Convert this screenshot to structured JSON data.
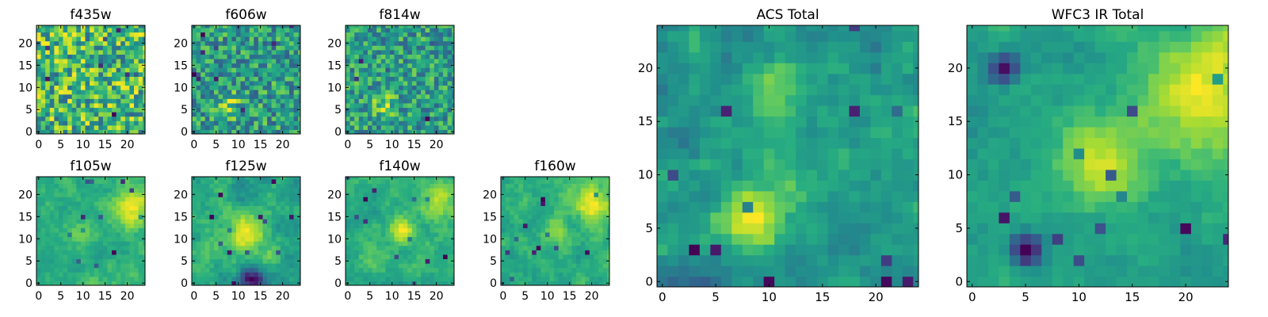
{
  "chart_data": [
    {
      "type": "heatmap",
      "title": "f435w",
      "size": 25,
      "seed": 11,
      "smooth": 0,
      "noise": 1.0,
      "xticks": [
        0,
        5,
        10,
        15,
        20
      ],
      "yticks": [
        0,
        5,
        10,
        15,
        20
      ],
      "colormap": "viridis",
      "grid": false,
      "blobs": []
    },
    {
      "type": "heatmap",
      "title": "f606w",
      "size": 25,
      "seed": 23,
      "smooth": 0,
      "noise": 1.0,
      "xticks": [
        0,
        5,
        10,
        15,
        20
      ],
      "yticks": [
        0,
        5,
        10,
        15,
        20
      ],
      "colormap": "viridis",
      "grid": false,
      "blobs": [
        {
          "x": 8,
          "y": 6,
          "r": 2,
          "amp": 0.9
        }
      ]
    },
    {
      "type": "heatmap",
      "title": "f814w",
      "size": 25,
      "seed": 37,
      "smooth": 0,
      "noise": 1.0,
      "xticks": [
        0,
        5,
        10,
        15,
        20
      ],
      "yticks": [
        0,
        5,
        10,
        15,
        20
      ],
      "colormap": "viridis",
      "grid": false,
      "blobs": [
        {
          "x": 8,
          "y": 6,
          "r": 2,
          "amp": 0.9
        }
      ]
    },
    {
      "type": "heatmap",
      "title": "f105w",
      "size": 25,
      "seed": 41,
      "smooth": 2,
      "noise": 0.8,
      "xticks": [
        0,
        5,
        10,
        15,
        20
      ],
      "yticks": [
        0,
        5,
        10,
        15,
        20
      ],
      "colormap": "viridis",
      "grid": false,
      "blobs": [
        {
          "x": 21,
          "y": 17,
          "r": 3,
          "amp": 1.0
        },
        {
          "x": 10,
          "y": 12,
          "r": 2,
          "amp": 0.5
        }
      ]
    },
    {
      "type": "heatmap",
      "title": "f125w",
      "size": 25,
      "seed": 53,
      "smooth": 2,
      "noise": 0.8,
      "xticks": [
        0,
        5,
        10,
        15,
        20
      ],
      "yticks": [
        0,
        5,
        10,
        15,
        20
      ],
      "colormap": "viridis",
      "grid": false,
      "blobs": [
        {
          "x": 12,
          "y": 11,
          "r": 3,
          "amp": 0.9
        },
        {
          "x": 13,
          "y": 1,
          "r": 2,
          "amp": -1.2
        }
      ]
    },
    {
      "type": "heatmap",
      "title": "f140w",
      "size": 25,
      "seed": 67,
      "smooth": 2,
      "noise": 0.8,
      "xticks": [
        0,
        5,
        10,
        15,
        20
      ],
      "yticks": [
        0,
        5,
        10,
        15,
        20
      ],
      "colormap": "viridis",
      "grid": false,
      "blobs": [
        {
          "x": 12,
          "y": 12,
          "r": 2,
          "amp": 1.0
        },
        {
          "x": 21,
          "y": 18,
          "r": 3,
          "amp": 0.8
        }
      ]
    },
    {
      "type": "heatmap",
      "title": "f160w",
      "size": 25,
      "seed": 79,
      "smooth": 2,
      "noise": 0.8,
      "xticks": [
        0,
        5,
        10,
        15,
        20
      ],
      "yticks": [
        0,
        5,
        10,
        15,
        20
      ],
      "colormap": "viridis",
      "grid": false,
      "blobs": [
        {
          "x": 20,
          "y": 18,
          "r": 3,
          "amp": 1.0
        },
        {
          "x": 12,
          "y": 12,
          "r": 2,
          "amp": 0.6
        }
      ]
    },
    {
      "type": "heatmap",
      "title": "ACS Total",
      "size": 25,
      "seed": 97,
      "smooth": 1,
      "noise": 0.8,
      "xticks": [
        0,
        5,
        10,
        15,
        20
      ],
      "yticks": [
        0,
        5,
        10,
        15,
        20
      ],
      "colormap": "viridis",
      "grid": false,
      "blobs": [
        {
          "x": 8,
          "y": 6,
          "r": 2,
          "amp": 1.2
        },
        {
          "x": 11,
          "y": 18,
          "r": 2,
          "amp": 0.9
        },
        {
          "x": 11,
          "y": 10,
          "r": 2,
          "amp": 0.5
        }
      ]
    },
    {
      "type": "heatmap",
      "title": "WFC3 IR Total",
      "size": 25,
      "seed": 113,
      "smooth": 2,
      "noise": 0.7,
      "xticks": [
        0,
        5,
        10,
        15,
        20
      ],
      "yticks": [
        0,
        5,
        10,
        15,
        20
      ],
      "colormap": "viridis",
      "grid": false,
      "blobs": [
        {
          "x": 22,
          "y": 18,
          "r": 4,
          "amp": 1.3
        },
        {
          "x": 12,
          "y": 11,
          "r": 3,
          "amp": 1.0
        },
        {
          "x": 3,
          "y": 20,
          "r": 1,
          "amp": -1.6
        },
        {
          "x": 5,
          "y": 3,
          "r": 1,
          "amp": -1.8
        }
      ]
    }
  ]
}
